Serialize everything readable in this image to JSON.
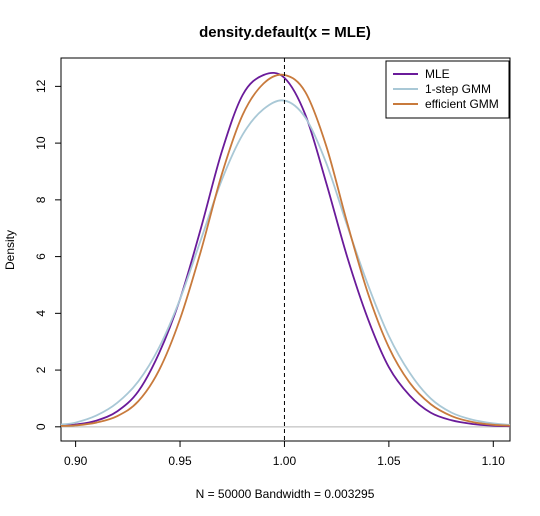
{
  "chart_data": {
    "type": "line",
    "title": "density.default(x = MLE)",
    "xlabel": "N = 50000   Bandwidth = 0.003295",
    "ylabel": "Density",
    "xlim": [
      0.893,
      1.108
    ],
    "ylim": [
      -0.5,
      13.0
    ],
    "x_ticks": [
      0.9,
      0.95,
      1.0,
      1.05,
      1.1
    ],
    "x_tick_labels": [
      "0.90",
      "0.95",
      "1.00",
      "1.05",
      "1.10"
    ],
    "y_ticks": [
      0,
      2,
      4,
      6,
      8,
      10,
      12
    ],
    "y_tick_labels": [
      "0",
      "2",
      "4",
      "6",
      "8",
      "10",
      "12"
    ],
    "grid": false,
    "legend_position": "top-right",
    "vline": {
      "x": 1.0,
      "style": "dashed"
    },
    "hline": {
      "y": 0
    },
    "series": [
      {
        "name": "MLE",
        "color": "#6a1b9a",
        "x": [
          0.893,
          0.9,
          0.91,
          0.92,
          0.93,
          0.94,
          0.95,
          0.96,
          0.97,
          0.98,
          0.99,
          1.0,
          1.01,
          1.02,
          1.03,
          1.04,
          1.05,
          1.06,
          1.07,
          1.08,
          1.09,
          1.1,
          1.108
        ],
        "y": [
          0.04,
          0.08,
          0.22,
          0.55,
          1.25,
          2.6,
          4.5,
          7.0,
          9.7,
          11.7,
          12.4,
          12.3,
          11.0,
          8.6,
          6.0,
          3.8,
          2.1,
          1.1,
          0.5,
          0.23,
          0.1,
          0.04,
          0.02
        ]
      },
      {
        "name": "1-step GMM",
        "color": "#a9c8d6",
        "x": [
          0.893,
          0.9,
          0.91,
          0.92,
          0.93,
          0.94,
          0.95,
          0.96,
          0.97,
          0.98,
          0.99,
          1.0,
          1.01,
          1.02,
          1.03,
          1.04,
          1.05,
          1.06,
          1.07,
          1.08,
          1.09,
          1.1,
          1.108
        ],
        "y": [
          0.08,
          0.15,
          0.4,
          0.85,
          1.6,
          2.8,
          4.5,
          6.6,
          8.7,
          10.3,
          11.2,
          11.5,
          10.9,
          9.3,
          7.1,
          5.0,
          3.2,
          1.9,
          1.0,
          0.5,
          0.25,
          0.12,
          0.07
        ]
      },
      {
        "name": "efficient GMM",
        "color": "#c87a3c",
        "x": [
          0.893,
          0.9,
          0.91,
          0.92,
          0.93,
          0.94,
          0.95,
          0.96,
          0.97,
          0.98,
          0.99,
          1.0,
          1.01,
          1.02,
          1.03,
          1.04,
          1.05,
          1.06,
          1.07,
          1.08,
          1.09,
          1.1,
          1.108
        ],
        "y": [
          0.03,
          0.05,
          0.15,
          0.38,
          0.9,
          2.0,
          3.8,
          6.2,
          8.9,
          11.0,
          12.1,
          12.4,
          11.8,
          9.9,
          7.2,
          4.7,
          2.8,
          1.55,
          0.8,
          0.38,
          0.17,
          0.07,
          0.04
        ]
      }
    ]
  }
}
